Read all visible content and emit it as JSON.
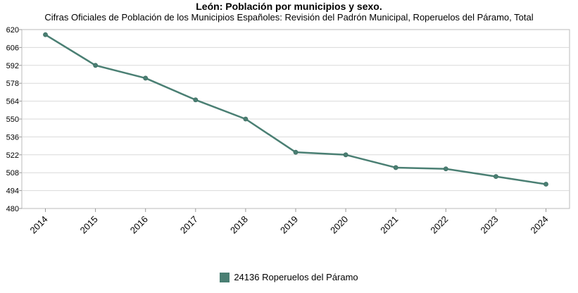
{
  "chart_data": {
    "type": "line",
    "title": "León: Población por municipios y sexo.",
    "subtitle": "Cifras Oficiales de Población de los Municipios Españoles: Revisión del Padrón Municipal, Roperuelos del Páramo, Total",
    "categories": [
      "2014",
      "2015",
      "2016",
      "2017",
      "2018",
      "2019",
      "2020",
      "2021",
      "2022",
      "2023",
      "2024"
    ],
    "series": [
      {
        "name": "24136 Roperuelos del Páramo",
        "color": "#4a7f73",
        "values": [
          616,
          592,
          582,
          565,
          550,
          524,
          522,
          512,
          511,
          505,
          499
        ]
      }
    ],
    "ylim": [
      480,
      620
    ],
    "yticks": [
      480,
      494,
      508,
      522,
      536,
      550,
      564,
      578,
      592,
      606,
      620
    ],
    "grid": true,
    "legend_position": "bottom"
  }
}
